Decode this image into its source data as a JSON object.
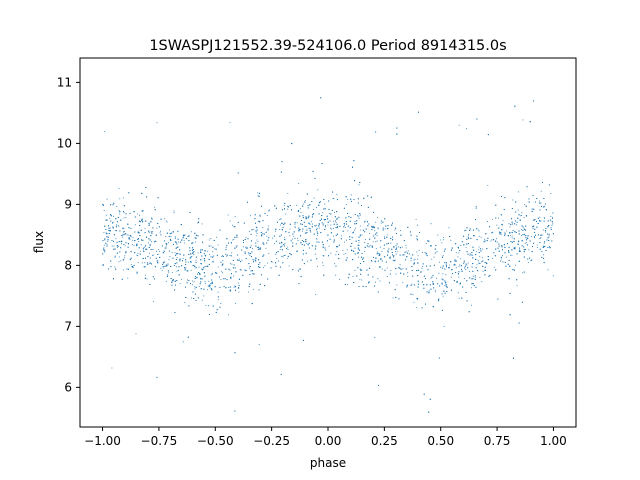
{
  "chart_data": {
    "type": "scatter",
    "title": "1SWASPJ121552.39-524106.0 Period 8914315.0s",
    "xlabel": "phase",
    "ylabel": "flux",
    "xlim": [
      -1.1,
      1.1
    ],
    "ylim": [
      5.35,
      11.4
    ],
    "x_ticks": [
      -1.0,
      -0.75,
      -0.5,
      -0.25,
      0.0,
      0.25,
      0.5,
      0.75,
      1.0
    ],
    "x_tick_labels": [
      "−1.00",
      "−0.75",
      "−0.50",
      "−0.25",
      "0.00",
      "0.25",
      "0.50",
      "0.75",
      "1.00"
    ],
    "y_ticks": [
      6,
      7,
      8,
      9,
      10,
      11
    ],
    "y_tick_labels": [
      "6",
      "7",
      "8",
      "9",
      "10",
      "11"
    ],
    "grid": false,
    "legend": "none",
    "marker_color": "#1f77b4",
    "series": [
      {
        "profile_phase": [
          -1.0,
          -0.9,
          -0.8,
          -0.7,
          -0.6,
          -0.5,
          -0.45,
          -0.4,
          -0.3,
          -0.2,
          -0.1,
          0.0,
          0.1,
          0.2,
          0.3,
          0.4,
          0.5,
          0.55,
          0.6,
          0.7,
          0.8,
          0.9,
          1.0
        ],
        "profile_median_flux": [
          8.55,
          8.45,
          8.35,
          8.2,
          8.05,
          7.9,
          7.95,
          8.05,
          8.35,
          8.5,
          8.55,
          8.6,
          8.5,
          8.35,
          8.2,
          8.05,
          7.9,
          7.9,
          8.0,
          8.35,
          8.5,
          8.55,
          8.55
        ],
        "profile_spread": 0.45,
        "dense_gaps": [
          -0.25,
          0.06,
          0.73
        ]
      }
    ]
  }
}
